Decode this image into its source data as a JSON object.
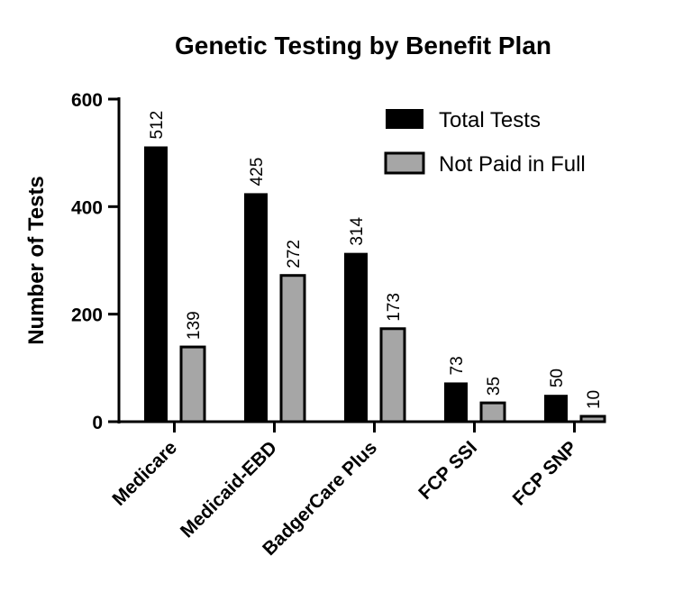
{
  "chart_data": {
    "type": "bar",
    "title": "Genetic Testing by Benefit Plan",
    "xlabel": "",
    "ylabel": "Number of Tests",
    "ylim": [
      0,
      600
    ],
    "yticks": [
      "0",
      "200",
      "400",
      "600"
    ],
    "categories": [
      "Medicare",
      "Medicaid-EBD",
      "BadgerCare Plus",
      "FCP SSI",
      "FCP SNP"
    ],
    "series": [
      {
        "name": "Total Tests",
        "color": "#000000",
        "values": [
          512,
          425,
          314,
          73,
          50
        ]
      },
      {
        "name": "Not Paid in Full",
        "color": "#a6a6a6",
        "values": [
          139,
          272,
          173,
          35,
          10
        ]
      }
    ],
    "legend_position": "top-right",
    "grid": false
  }
}
